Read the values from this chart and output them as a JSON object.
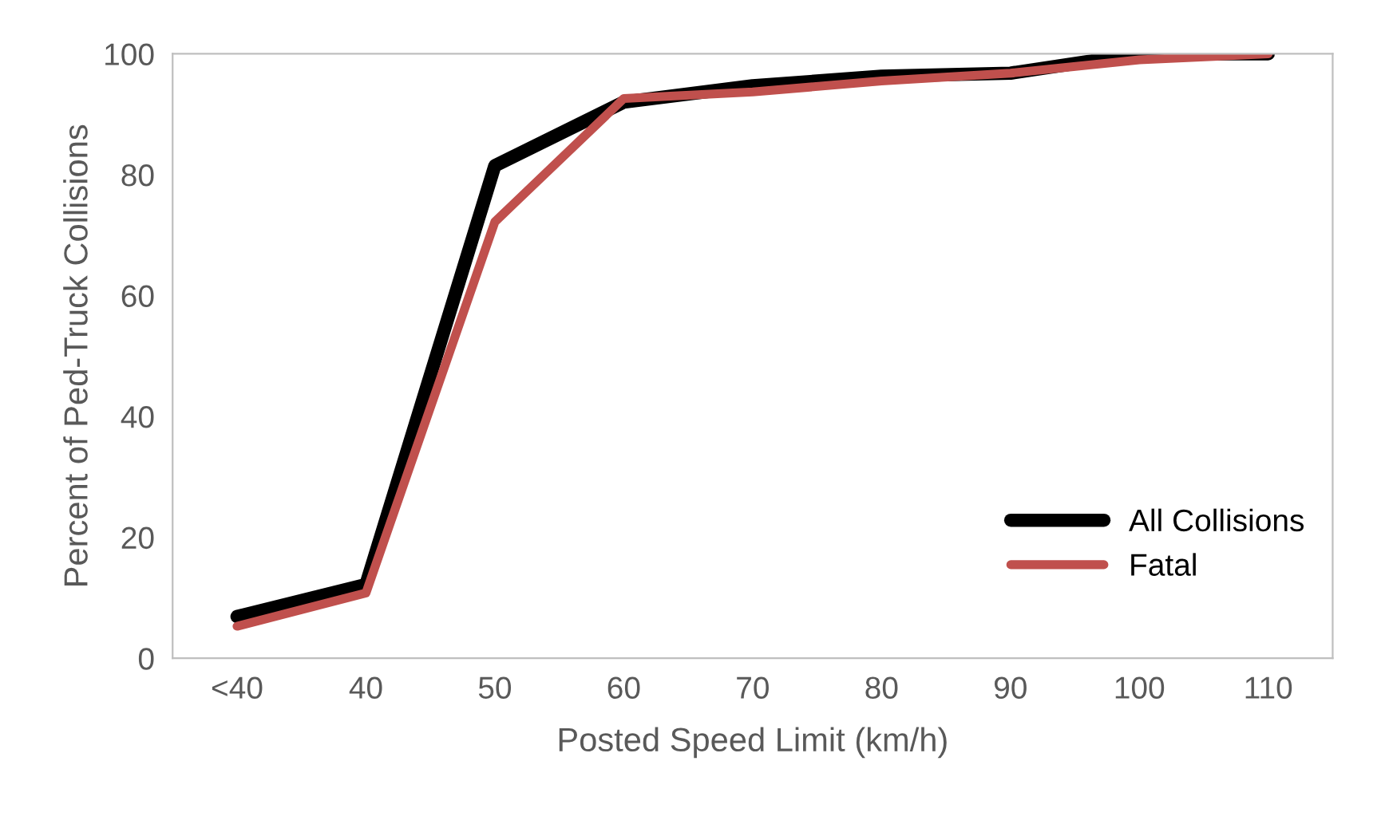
{
  "chart_data": {
    "type": "line",
    "xlabel": "Posted Speed Limit (km/h)",
    "ylabel": "Percent of Ped-Truck Collisions",
    "categories": [
      "<40",
      "40",
      "50",
      "60",
      "70",
      "80",
      "90",
      "100",
      "110"
    ],
    "series": [
      {
        "name": "All Collisions",
        "color": "#000000",
        "values": [
          6.9,
          12.2,
          81.5,
          92,
          94.7,
          96.3,
          96.8,
          100,
          100
        ]
      },
      {
        "name": "Fatal",
        "color": "#c0504d",
        "values": [
          5.3,
          10.8,
          72.2,
          92.6,
          93.7,
          95.5,
          96.8,
          99,
          100
        ]
      }
    ],
    "ylim": [
      0,
      100
    ],
    "yticks": [
      0,
      20,
      40,
      60,
      80,
      100
    ],
    "grid": false,
    "legend": "bottom right",
    "marker": "none",
    "line_style": "solid"
  }
}
